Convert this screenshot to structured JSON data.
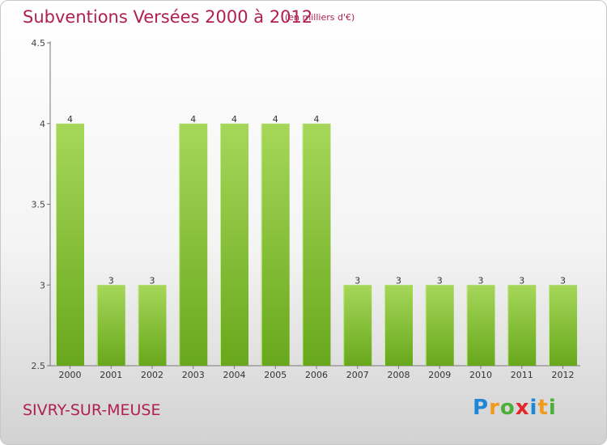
{
  "chart_data": {
    "type": "bar",
    "title": "Subventions Versées 2000 à 2012",
    "subtitle": "(en milliers d'€)",
    "categories": [
      "2000",
      "2001",
      "2002",
      "2003",
      "2004",
      "2005",
      "2006",
      "2007",
      "2008",
      "2009",
      "2010",
      "2011",
      "2012"
    ],
    "values": [
      4,
      3,
      3,
      4,
      4,
      4,
      4,
      3,
      3,
      3,
      3,
      3,
      3
    ],
    "data_labels": [
      "4",
      "3",
      "3",
      "4",
      "4",
      "4",
      "4",
      "3",
      "3",
      "3",
      "3",
      "3",
      "3"
    ],
    "yticks": [
      "2.5",
      "3",
      "3.5",
      "4",
      "4.5"
    ],
    "ylim": [
      2.5,
      4.5
    ],
    "grid": false,
    "legend": "none",
    "bar_color_top": "#a6d75a",
    "bar_color_bottom": "#68a81c"
  },
  "footer": {
    "commune": "SIVRY-SUR-MEUSE",
    "logo_letters": [
      "P",
      "r",
      "o",
      "x",
      "i",
      "t",
      "i"
    ]
  }
}
